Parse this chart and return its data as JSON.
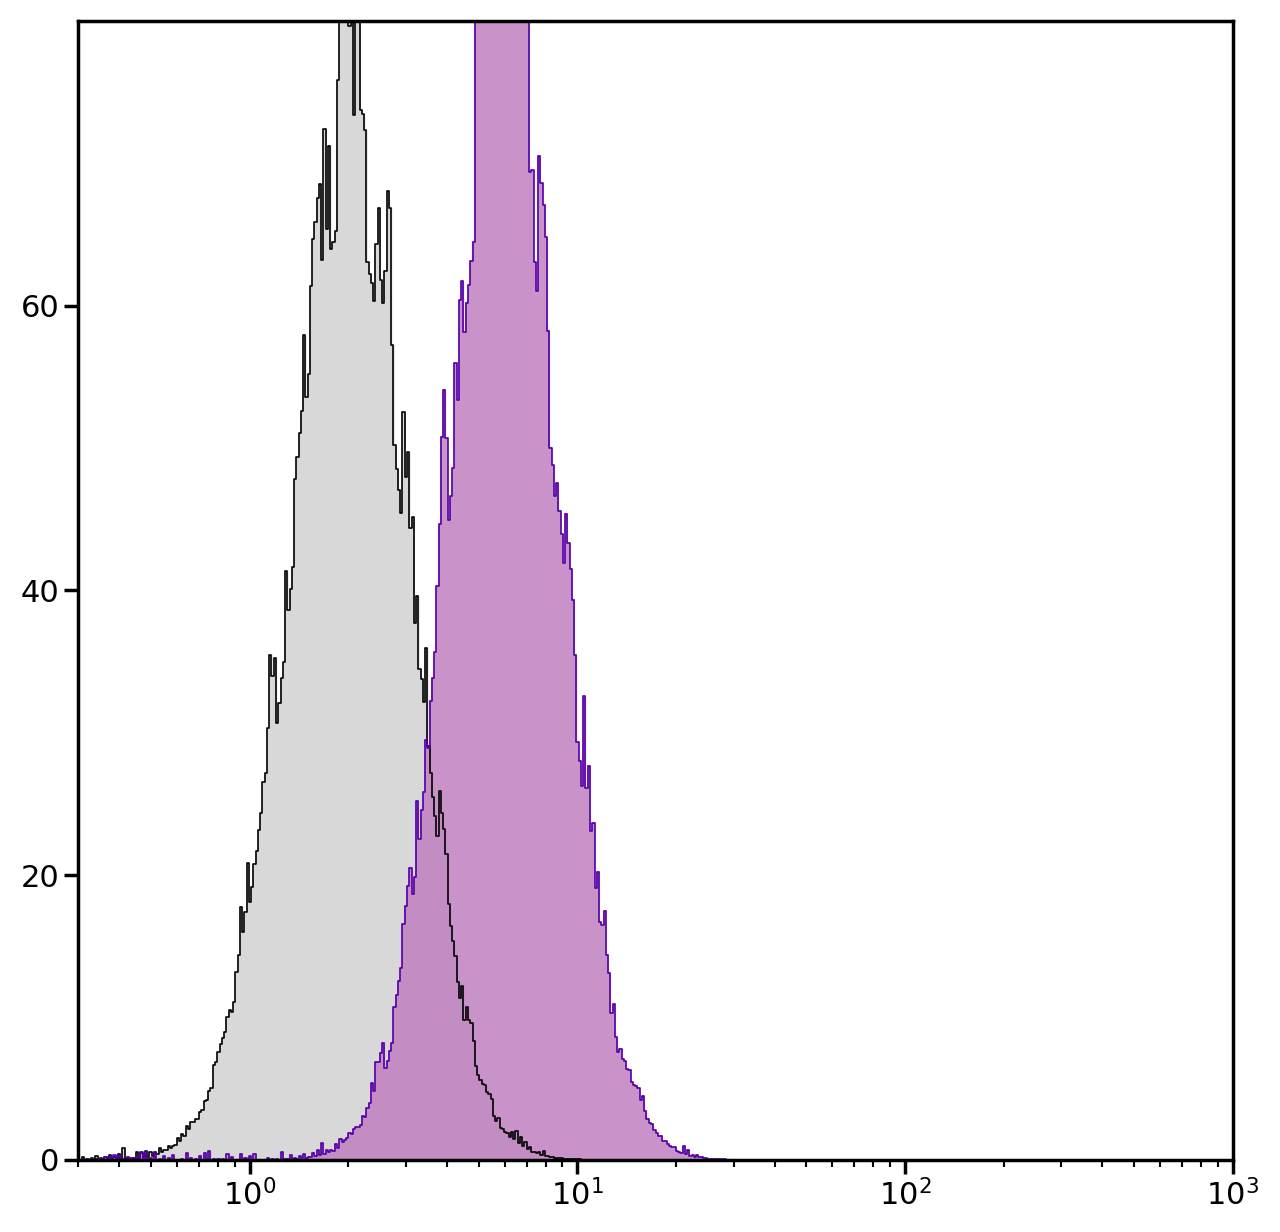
{
  "xlim": [
    0.3,
    1000
  ],
  "ylim": [
    0,
    80
  ],
  "yticks": [
    0,
    20,
    40,
    60
  ],
  "background_color": "#ffffff",
  "black_hist": {
    "peak_x": 2.0,
    "peak_y": 75,
    "sigma_log": 0.18,
    "color_fill": "#d8d8d8",
    "color_line": "#000000",
    "linewidth": 1.2
  },
  "purple_hist": {
    "peak_x": 6.0,
    "peak_y": 78,
    "sigma_log": 0.17,
    "color_fill": "#c080c0",
    "color_line": "#5500aa",
    "linewidth": 1.2
  },
  "tick_labelsize": 22,
  "spine_linewidth": 2.5
}
